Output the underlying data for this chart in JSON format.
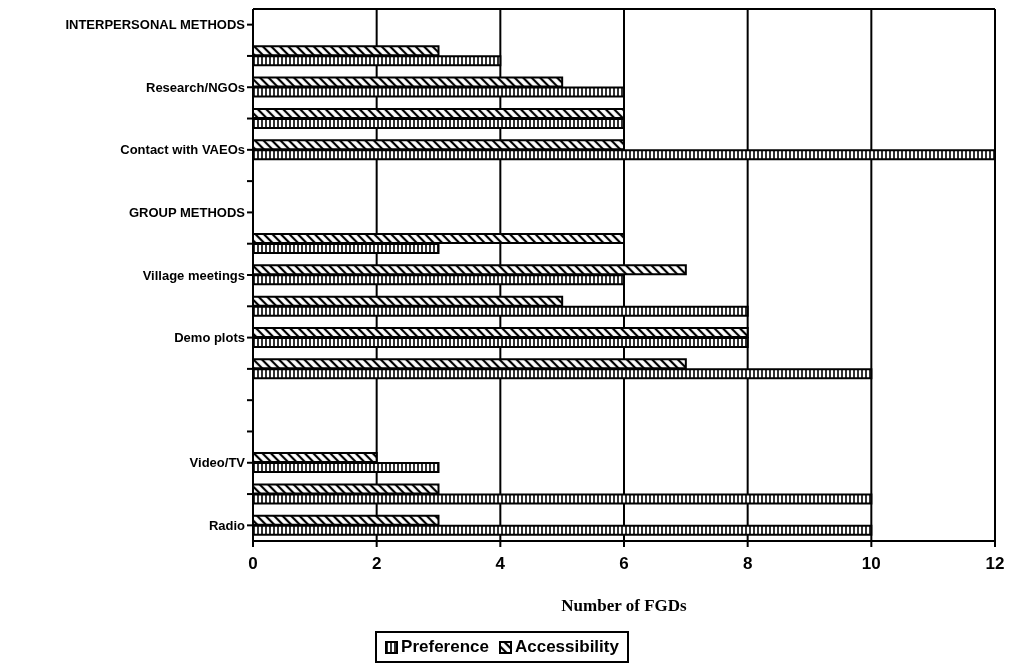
{
  "chart_data": {
    "type": "bar",
    "orientation": "horizontal",
    "xlabel": "Number of FGDs",
    "categories": [
      "INTERPERSONAL METHODS",
      null,
      "Research/NGOs",
      null,
      "Contact with VAEOs",
      null,
      "GROUP METHODS",
      null,
      "Village meetings",
      null,
      "Demo plots",
      null,
      null,
      null,
      "Video/TV",
      null,
      "Radio"
    ],
    "series": [
      {
        "name": "Preference",
        "color": "#000000",
        "values": [
          null,
          4,
          6,
          6,
          12,
          null,
          null,
          3,
          6,
          8,
          8,
          10,
          null,
          null,
          3,
          10,
          10
        ]
      },
      {
        "name": "Accessibility",
        "color": "#000000",
        "values": [
          null,
          3,
          5,
          6,
          6,
          null,
          null,
          6,
          7,
          5,
          8,
          7,
          null,
          null,
          2,
          3,
          3
        ]
      }
    ],
    "xlim": [
      0,
      12
    ],
    "xticks": [
      0,
      2,
      4,
      6,
      8,
      10,
      12
    ],
    "grid": "x",
    "legend": "bottom"
  }
}
